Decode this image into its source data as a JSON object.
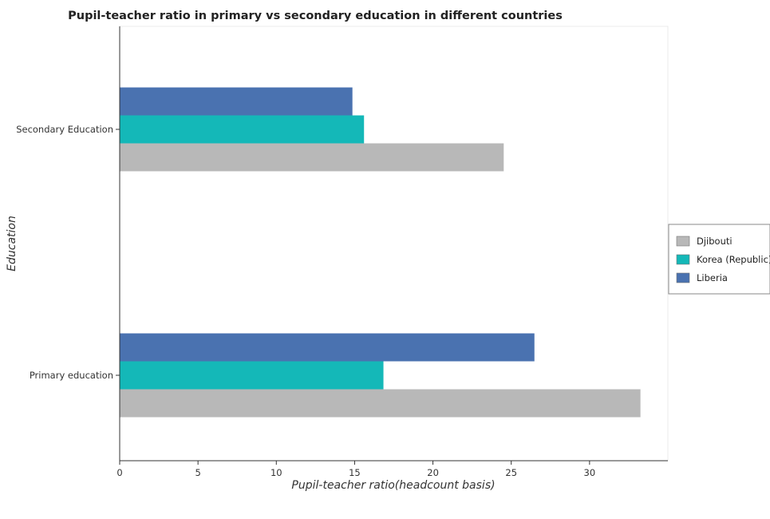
{
  "chart_data": {
    "type": "bar",
    "orientation": "horizontal",
    "title": "Pupil-teacher ratio in primary vs secondary education in different countries",
    "xlabel": "Pupil-teacher ratio(headcount basis)",
    "ylabel": "Education",
    "categories": [
      "Primary education",
      "Secondary Education"
    ],
    "series": [
      {
        "name": "Djibouti",
        "color": "#b8b8b8",
        "values": [
          33.25,
          24.52
        ]
      },
      {
        "name": "Korea (Republic)",
        "color": "#14b8b8",
        "values": [
          16.84,
          15.6
        ]
      },
      {
        "name": "Liberia",
        "color": "#4a72b0",
        "values": [
          26.48,
          14.86
        ]
      }
    ],
    "xlim": [
      0,
      35
    ],
    "xticks": [
      0,
      5,
      10,
      15,
      20,
      25,
      30
    ],
    "grid": false,
    "legend_position": "right"
  }
}
